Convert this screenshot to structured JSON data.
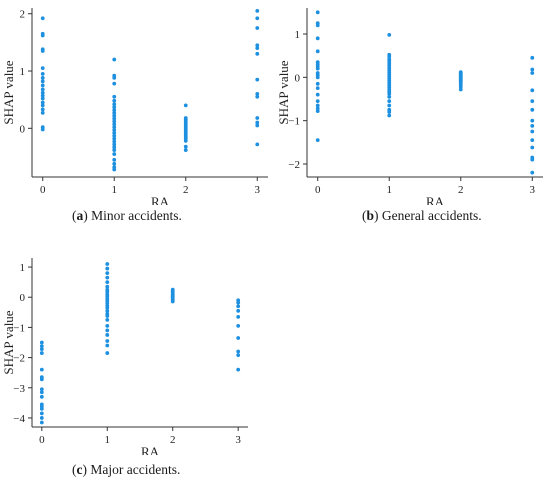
{
  "captions": [
    {
      "letter": "a",
      "text": "Minor accidents."
    },
    {
      "letter": "b",
      "text": "General accidents."
    },
    {
      "letter": "c",
      "text": "Major accidents."
    }
  ],
  "point_color": "#1e90e0",
  "chart_data": [
    {
      "type": "scatter",
      "xlabel": "RA",
      "ylabel": "SHAP value",
      "xticks": [
        0,
        1,
        2,
        3
      ],
      "yticks": [
        0,
        1,
        2
      ],
      "xlim": [
        -0.15,
        3.15
      ],
      "ylim": [
        -0.85,
        2.1
      ],
      "grid": false,
      "points": [
        {
          "x": 0,
          "y": [
            1.92,
            1.65,
            1.62,
            1.38,
            1.35,
            1.05,
            0.95,
            0.88,
            0.82,
            0.75,
            0.68,
            0.62,
            0.57,
            0.52,
            0.45,
            0.4,
            0.33,
            0.27,
            0.02,
            -0.02
          ]
        },
        {
          "x": 1,
          "y": [
            1.2,
            0.92,
            0.88,
            0.78,
            0.55,
            0.48,
            0.42,
            0.37,
            0.32,
            0.27,
            0.22,
            0.17,
            0.12,
            0.07,
            0.02,
            -0.03,
            -0.08,
            -0.13,
            -0.18,
            -0.23,
            -0.28,
            -0.33,
            -0.38,
            -0.45,
            -0.55,
            -0.62,
            -0.68,
            -0.72
          ]
        },
        {
          "x": 2,
          "y": [
            0.4,
            0.18,
            0.15,
            0.12,
            0.09,
            0.06,
            0.03,
            0.0,
            -0.03,
            -0.06,
            -0.09,
            -0.12,
            -0.15,
            -0.18,
            -0.22,
            -0.32,
            -0.38
          ]
        },
        {
          "x": 3,
          "y": [
            2.05,
            1.92,
            1.75,
            1.45,
            1.4,
            1.3,
            0.85,
            0.6,
            0.55,
            0.18,
            0.1,
            0.05,
            -0.28
          ]
        }
      ]
    },
    {
      "type": "scatter",
      "xlabel": "RA",
      "ylabel": "SHAP value",
      "xticks": [
        0,
        1,
        2,
        3
      ],
      "yticks": [
        -2,
        -1,
        0,
        1
      ],
      "xlim": [
        -0.15,
        3.15
      ],
      "ylim": [
        -2.3,
        1.6
      ],
      "grid": false,
      "points": [
        {
          "x": 0,
          "y": [
            1.5,
            1.25,
            1.2,
            0.9,
            0.6,
            0.35,
            0.3,
            0.25,
            0.2,
            0.1,
            0.05,
            0.0,
            -0.15,
            -0.25,
            -0.4,
            -0.55,
            -0.65,
            -0.72,
            -0.78,
            -1.45
          ]
        },
        {
          "x": 1,
          "y": [
            0.98,
            0.52,
            0.48,
            0.42,
            0.38,
            0.33,
            0.28,
            0.22,
            0.17,
            0.12,
            0.07,
            0.02,
            -0.03,
            -0.08,
            -0.13,
            -0.18,
            -0.23,
            -0.28,
            -0.33,
            -0.38,
            -0.45,
            -0.55,
            -0.65,
            -0.75,
            -0.8,
            -0.88
          ]
        },
        {
          "x": 2,
          "y": [
            0.12,
            0.1,
            0.08,
            0.06,
            0.04,
            0.02,
            0.0,
            -0.02,
            -0.04,
            -0.06,
            -0.08,
            -0.1,
            -0.13,
            -0.17,
            -0.22,
            -0.28
          ]
        },
        {
          "x": 3,
          "y": [
            0.45,
            0.18,
            0.1,
            -0.3,
            -0.55,
            -0.75,
            -1.0,
            -1.12,
            -1.25,
            -1.45,
            -1.62,
            -1.85,
            -1.9,
            -2.2
          ]
        }
      ]
    },
    {
      "type": "scatter",
      "xlabel": "RA",
      "ylabel": "SHAP value",
      "xticks": [
        0,
        1,
        2,
        3
      ],
      "yticks": [
        -4,
        -3,
        -2,
        -1,
        0,
        1
      ],
      "xlim": [
        -0.15,
        3.15
      ],
      "ylim": [
        -4.3,
        1.3
      ],
      "grid": false,
      "points": [
        {
          "x": 0,
          "y": [
            -1.5,
            -1.62,
            -1.72,
            -1.85,
            -2.4,
            -2.65,
            -2.72,
            -3.05,
            -3.15,
            -3.3,
            -3.55,
            -3.62,
            -3.7,
            -3.85,
            -4.0,
            -4.15
          ]
        },
        {
          "x": 1,
          "y": [
            1.1,
            0.95,
            0.8,
            0.65,
            0.5,
            0.35,
            0.25,
            0.18,
            0.1,
            0.03,
            -0.05,
            -0.12,
            -0.2,
            -0.28,
            -0.35,
            -0.45,
            -0.55,
            -0.62,
            -0.75,
            -0.95,
            -1.1,
            -1.25,
            -1.45,
            -1.6,
            -1.85
          ]
        },
        {
          "x": 2,
          "y": [
            0.25,
            0.2,
            0.15,
            0.1,
            0.06,
            0.02,
            -0.02,
            -0.06,
            -0.1,
            -0.14
          ]
        },
        {
          "x": 3,
          "y": [
            -0.1,
            -0.18,
            -0.3,
            -0.45,
            -0.65,
            -0.95,
            -1.35,
            -1.8,
            -1.92,
            -2.4
          ]
        }
      ]
    }
  ]
}
